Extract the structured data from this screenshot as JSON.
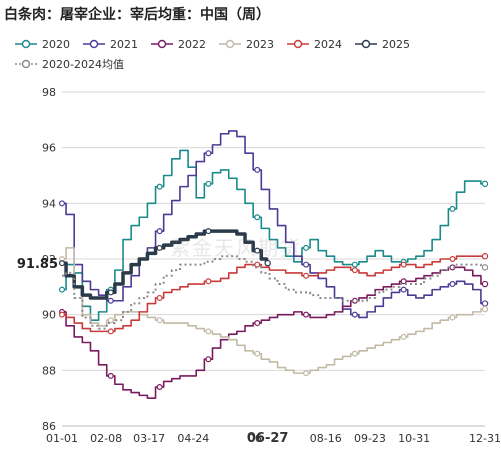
{
  "title": "白条肉：屠宰企业：宰后均重：中国（周）",
  "watermark": "紫金天风期货",
  "colors": {
    "2020": "#1a8a8a",
    "2021": "#4b3a96",
    "2022": "#7a1a5e",
    "2023": "#c2b9a6",
    "2024": "#c93a3a",
    "2025": "#2b3a4a",
    "avg": "#8a8a8a"
  },
  "chart_data": {
    "type": "line",
    "title": "白条肉：屠宰企业：宰后均重：中国（周）",
    "xlabel": "",
    "ylabel": "",
    "ylim": [
      86,
      98
    ],
    "yticks": [
      86,
      88,
      90,
      92,
      94,
      96,
      98
    ],
    "grid": true,
    "legend_position": "top",
    "x_tick_labels": [
      "01-01",
      "02-08",
      "03-17",
      "04-24",
      "06-27",
      "08-16",
      "09-23",
      "10-31",
      "12-31"
    ],
    "x_tick_days": [
      1,
      39,
      76,
      114,
      178,
      228,
      266,
      304,
      365
    ],
    "x_tick_labels_hidden": [
      "06"
    ],
    "highlight_x_label": "06-27",
    "highlight_y_label": "91.85",
    "series": [
      {
        "name": "2020",
        "color_key": "2020",
        "dashed": false,
        "thick": false,
        "x": [
          1,
          8,
          15,
          22,
          29,
          36,
          43,
          50,
          57,
          64,
          71,
          78,
          85,
          92,
          99,
          106,
          113,
          120,
          127,
          134,
          141,
          148,
          155,
          162,
          169,
          176,
          183,
          190,
          197,
          204,
          211,
          218,
          225,
          232,
          239,
          246,
          253,
          260,
          267,
          274,
          281,
          288,
          295,
          302,
          309,
          316,
          323,
          330,
          337,
          344,
          351,
          358,
          365
        ],
        "y": [
          90.9,
          91.8,
          91.5,
          90.3,
          89.8,
          90.1,
          90.9,
          91.6,
          92.7,
          93.2,
          93.5,
          94.0,
          94.6,
          95.0,
          95.6,
          95.9,
          95.3,
          94.2,
          94.7,
          95.1,
          95.2,
          94.9,
          94.5,
          94.0,
          93.5,
          93.1,
          92.7,
          92.4,
          92.1,
          91.9,
          92.4,
          92.7,
          92.3,
          92.1,
          91.9,
          91.8,
          91.8,
          91.9,
          92.1,
          92.3,
          92.1,
          91.9,
          91.9,
          92.0,
          92.1,
          92.3,
          92.7,
          93.2,
          93.8,
          94.4,
          94.8,
          94.8,
          94.7
        ]
      },
      {
        "name": "2021",
        "color_key": "2021",
        "dashed": false,
        "thick": false,
        "x": [
          1,
          8,
          15,
          22,
          29,
          36,
          43,
          50,
          57,
          64,
          71,
          78,
          85,
          92,
          99,
          106,
          113,
          120,
          127,
          134,
          141,
          148,
          155,
          162,
          169,
          176,
          183,
          190,
          197,
          204,
          211,
          218,
          225,
          232,
          239,
          246,
          253,
          260,
          267,
          274,
          281,
          288,
          295,
          302,
          309,
          316,
          323,
          330,
          337,
          344,
          351,
          358,
          365
        ],
        "y": [
          94.0,
          93.6,
          91.8,
          91.2,
          90.9,
          90.7,
          90.5,
          90.5,
          91.0,
          91.4,
          92.0,
          92.4,
          93.0,
          93.6,
          94.1,
          94.6,
          95.0,
          95.5,
          95.8,
          96.1,
          96.5,
          96.6,
          96.4,
          95.8,
          95.2,
          94.5,
          93.8,
          93.2,
          92.6,
          92.1,
          91.8,
          91.5,
          91.3,
          91.0,
          90.6,
          90.2,
          90.0,
          89.9,
          90.1,
          90.3,
          90.6,
          90.8,
          90.9,
          90.7,
          90.6,
          90.7,
          90.9,
          91.0,
          91.1,
          91.2,
          91.1,
          90.9,
          90.4
        ]
      },
      {
        "name": "2022",
        "color_key": "2022",
        "dashed": false,
        "thick": false,
        "x": [
          1,
          8,
          15,
          22,
          29,
          36,
          43,
          50,
          57,
          64,
          71,
          78,
          85,
          92,
          99,
          106,
          113,
          120,
          127,
          134,
          141,
          148,
          155,
          162,
          169,
          176,
          183,
          190,
          197,
          204,
          211,
          218,
          225,
          232,
          239,
          246,
          253,
          260,
          267,
          274,
          281,
          288,
          295,
          302,
          309,
          316,
          323,
          330,
          337,
          344,
          351,
          358,
          365
        ],
        "y": [
          90.1,
          89.6,
          89.2,
          89.0,
          88.7,
          88.2,
          87.8,
          87.5,
          87.3,
          87.2,
          87.1,
          87.0,
          87.4,
          87.6,
          87.7,
          87.8,
          87.8,
          88.0,
          88.4,
          88.8,
          89.1,
          89.3,
          89.4,
          89.6,
          89.7,
          89.8,
          89.9,
          90.0,
          90.0,
          90.1,
          90.0,
          89.9,
          89.9,
          90.0,
          90.1,
          90.3,
          90.5,
          90.6,
          90.7,
          90.9,
          91.0,
          91.1,
          91.2,
          91.2,
          91.3,
          91.4,
          91.5,
          91.6,
          91.7,
          91.7,
          91.6,
          91.4,
          91.1
        ]
      },
      {
        "name": "2023",
        "color_key": "2023",
        "dashed": false,
        "thick": false,
        "x": [
          1,
          8,
          15,
          22,
          29,
          36,
          43,
          50,
          57,
          64,
          71,
          78,
          85,
          92,
          99,
          106,
          113,
          120,
          127,
          134,
          141,
          148,
          155,
          162,
          169,
          176,
          183,
          190,
          197,
          204,
          211,
          218,
          225,
          232,
          239,
          246,
          253,
          260,
          267,
          274,
          281,
          288,
          295,
          302,
          309,
          316,
          323,
          330,
          337,
          344,
          351,
          358,
          365
        ],
        "y": [
          92.0,
          92.4,
          91.0,
          90.0,
          89.7,
          89.6,
          89.8,
          90.0,
          90.1,
          90.1,
          90.0,
          89.9,
          89.8,
          89.7,
          89.7,
          89.7,
          89.6,
          89.5,
          89.4,
          89.3,
          89.2,
          89.1,
          88.9,
          88.7,
          88.6,
          88.4,
          88.3,
          88.1,
          88.0,
          87.9,
          87.9,
          88.0,
          88.1,
          88.2,
          88.4,
          88.5,
          88.6,
          88.7,
          88.8,
          88.9,
          89.0,
          89.1,
          89.2,
          89.3,
          89.4,
          89.5,
          89.7,
          89.8,
          89.9,
          90.0,
          90.0,
          90.1,
          90.2
        ]
      },
      {
        "name": "2024",
        "color_key": "2024",
        "dashed": false,
        "thick": false,
        "x": [
          1,
          8,
          15,
          22,
          29,
          36,
          43,
          50,
          57,
          64,
          71,
          78,
          85,
          92,
          99,
          106,
          113,
          120,
          127,
          134,
          141,
          148,
          155,
          162,
          169,
          176,
          183,
          190,
          197,
          204,
          211,
          218,
          225,
          232,
          239,
          246,
          253,
          260,
          267,
          274,
          281,
          288,
          295,
          302,
          309,
          316,
          323,
          330,
          337,
          344,
          351,
          358,
          365
        ],
        "y": [
          90.0,
          89.9,
          89.7,
          89.5,
          89.4,
          89.4,
          89.4,
          89.5,
          89.6,
          89.8,
          90.1,
          90.4,
          90.6,
          90.8,
          90.9,
          91.0,
          91.1,
          91.1,
          91.2,
          91.2,
          91.3,
          91.5,
          91.7,
          91.8,
          91.8,
          91.7,
          91.6,
          91.6,
          91.5,
          91.5,
          91.4,
          91.4,
          91.5,
          91.6,
          91.7,
          91.7,
          91.6,
          91.5,
          91.4,
          91.5,
          91.6,
          91.7,
          91.8,
          91.8,
          91.7,
          91.8,
          91.9,
          92.0,
          92.0,
          92.1,
          92.1,
          92.1,
          92.1
        ]
      },
      {
        "name": "2025",
        "color_key": "2025",
        "dashed": false,
        "thick": true,
        "x": [
          1,
          8,
          15,
          22,
          29,
          36,
          43,
          50,
          57,
          64,
          71,
          78,
          85,
          92,
          99,
          106,
          113,
          120,
          127,
          134,
          141,
          148,
          155,
          162,
          169,
          176,
          178
        ],
        "y": [
          91.85,
          91.4,
          91.0,
          90.7,
          90.6,
          90.6,
          90.8,
          91.1,
          91.5,
          91.8,
          92.0,
          92.2,
          92.4,
          92.5,
          92.6,
          92.7,
          92.8,
          92.9,
          93.0,
          93.0,
          93.0,
          93.0,
          92.9,
          92.6,
          92.3,
          92.0,
          91.85
        ]
      },
      {
        "name": "2020-2024均值",
        "color_key": "avg",
        "dashed": true,
        "thick": false,
        "x": [
          1,
          8,
          15,
          22,
          29,
          36,
          43,
          50,
          57,
          64,
          71,
          78,
          85,
          92,
          99,
          106,
          113,
          120,
          127,
          134,
          141,
          148,
          155,
          162,
          169,
          176,
          183,
          190,
          197,
          204,
          211,
          218,
          225,
          232,
          239,
          246,
          253,
          260,
          267,
          274,
          281,
          288,
          295,
          302,
          309,
          316,
          323,
          330,
          337,
          344,
          351,
          358,
          365
        ],
        "y": [
          91.4,
          91.5,
          90.6,
          89.9,
          89.6,
          89.5,
          89.7,
          89.8,
          90.1,
          90.4,
          90.6,
          90.8,
          91.1,
          91.4,
          91.6,
          91.8,
          91.8,
          91.8,
          91.9,
          92.0,
          92.1,
          92.1,
          92.0,
          91.9,
          91.7,
          91.5,
          91.3,
          91.1,
          90.9,
          90.8,
          90.8,
          90.7,
          90.6,
          90.6,
          90.6,
          90.5,
          90.5,
          90.5,
          90.6,
          90.8,
          90.9,
          91.0,
          91.1,
          91.1,
          91.1,
          91.3,
          91.4,
          91.6,
          91.7,
          91.8,
          91.8,
          91.8,
          91.7
        ]
      }
    ]
  }
}
